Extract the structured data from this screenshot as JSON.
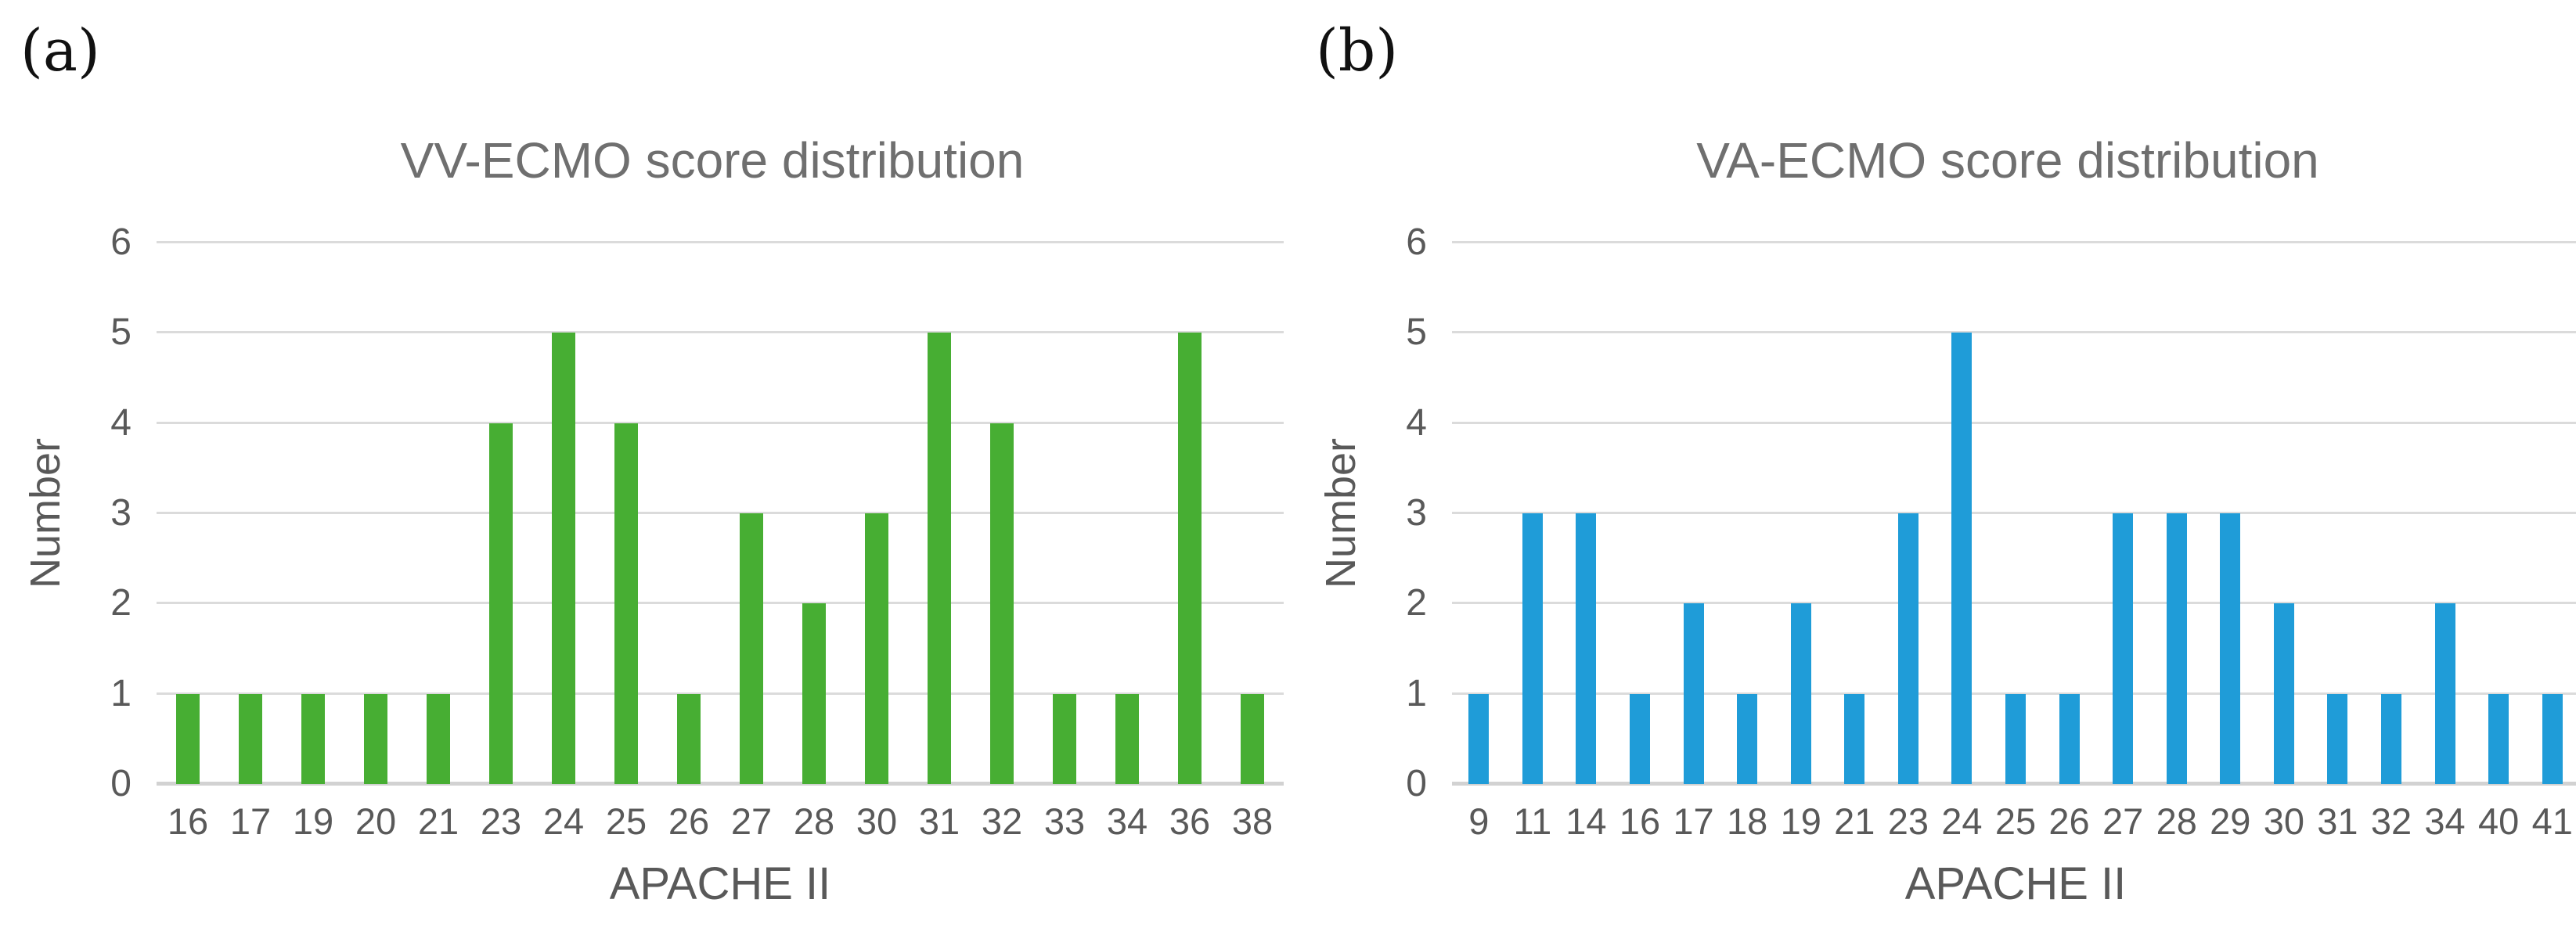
{
  "figure": {
    "background": "#ffffff",
    "description_labels": [
      "(a)",
      "(b)"
    ]
  },
  "chart_data": [
    {
      "type": "bar",
      "panel_label": "(a)",
      "title": "VV-ECMO score distribution",
      "xlabel": "APACHE II",
      "ylabel": "Number",
      "ylim": [
        0,
        6
      ],
      "yticks": [
        0,
        1,
        2,
        3,
        4,
        5,
        6
      ],
      "grid": "horizontal",
      "legend": "none",
      "bar_color": "#47ae33",
      "categories": [
        "16",
        "17",
        "19",
        "20",
        "21",
        "23",
        "24",
        "25",
        "26",
        "27",
        "28",
        "30",
        "31",
        "32",
        "33",
        "34",
        "36",
        "38"
      ],
      "values": [
        1,
        1,
        1,
        1,
        1,
        4,
        5,
        4,
        1,
        3,
        2,
        3,
        5,
        4,
        1,
        1,
        5,
        1
      ]
    },
    {
      "type": "bar",
      "panel_label": "(b)",
      "title": "VA-ECMO score distribution",
      "xlabel": "APACHE II",
      "ylabel": "Number",
      "ylim": [
        0,
        6
      ],
      "yticks": [
        0,
        1,
        2,
        3,
        4,
        5,
        6
      ],
      "grid": "horizontal",
      "legend": "none",
      "bar_color": "#1f9cd8",
      "categories": [
        "9",
        "11",
        "14",
        "16",
        "17",
        "18",
        "19",
        "21",
        "23",
        "24",
        "25",
        "26",
        "27",
        "28",
        "29",
        "30",
        "31",
        "32",
        "34",
        "40",
        "41"
      ],
      "values": [
        1,
        3,
        3,
        1,
        2,
        1,
        2,
        1,
        3,
        5,
        1,
        1,
        3,
        3,
        3,
        2,
        1,
        1,
        2,
        1,
        1
      ]
    }
  ],
  "styles": {
    "gridline_color": "#dbdbdb",
    "baseline_color": "#d2d2d2",
    "title_color": "#6f6f6f",
    "tick_color": "#595959",
    "panel_label_color": "#111111"
  }
}
